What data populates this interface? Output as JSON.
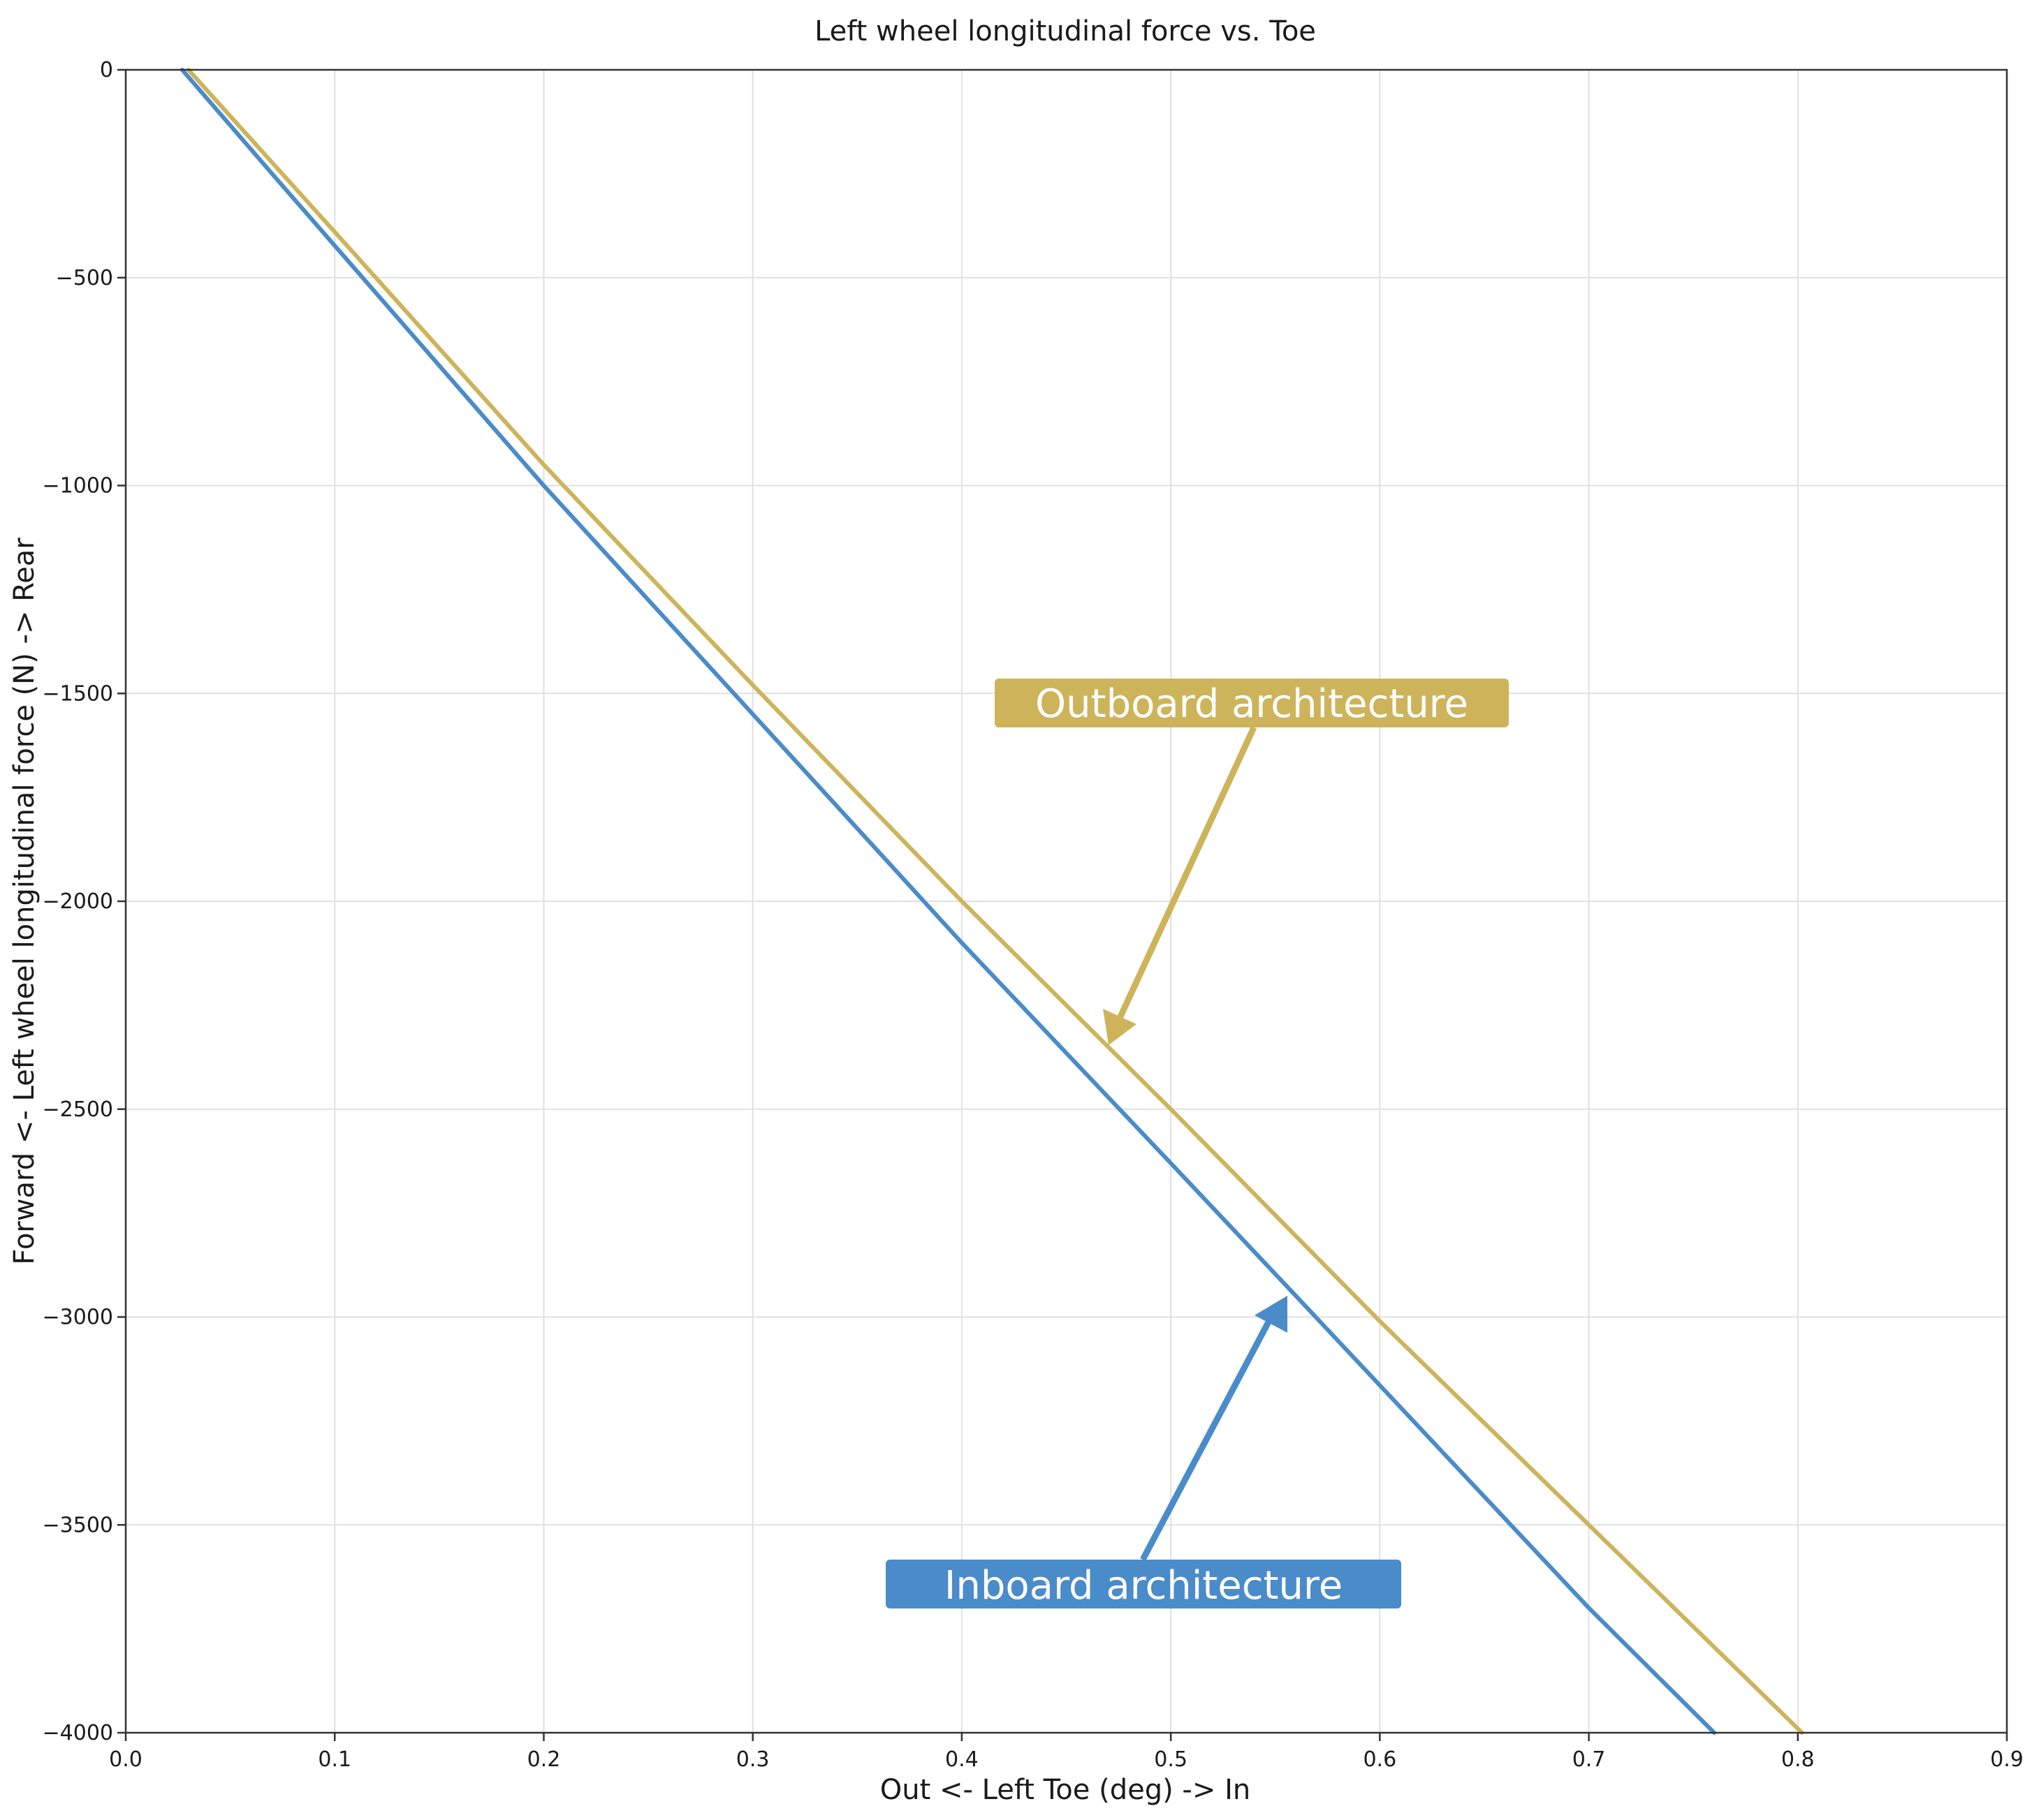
{
  "chart_data": {
    "type": "line",
    "title": "Left wheel longitudinal force vs. Toe",
    "xlabel": "Out <- Left Toe (deg) -> In",
    "ylabel": "Forward <- Left wheel longitudinal force (N) -> Rear",
    "xlim": [
      0,
      0.9
    ],
    "ylim": [
      -4000,
      0
    ],
    "x_ticks": [
      0,
      0.1,
      0.2,
      0.3,
      0.4,
      0.5,
      0.6,
      0.7,
      0.8,
      0.9
    ],
    "x_tick_labels": [
      "0.0",
      "0.1",
      "0.2",
      "0.3",
      "0.4",
      "0.5",
      "0.6",
      "0.7",
      "0.8",
      "0.9"
    ],
    "y_ticks": [
      0,
      -500,
      -1000,
      -1500,
      -2000,
      -2500,
      -3000,
      -3500,
      -4000
    ],
    "y_tick_labels": [
      "0",
      "−500",
      "−1000",
      "−1500",
      "−2000",
      "−2500",
      "−3000",
      "−3500",
      "−4000"
    ],
    "grid": true,
    "series": [
      {
        "color": "#4a8bc9",
        "x": [
          0.027,
          0.07,
          0.2,
          0.3,
          0.4,
          0.5,
          0.56,
          0.7,
          0.76
        ],
        "y": [
          0,
          -250,
          -1000,
          -1550,
          -2100,
          -2630,
          -2950,
          -3700,
          -4000
        ]
      },
      {
        "color": "#cdb45a",
        "x": [
          0.03,
          0.1,
          0.2,
          0.3,
          0.4,
          0.5,
          0.6,
          0.7,
          0.802
        ],
        "y": [
          0,
          -390,
          -950,
          -1480,
          -2000,
          -2500,
          -3010,
          -3500,
          -4000
        ]
      }
    ],
    "annotations": [
      {
        "text": "Outboard architecture",
        "color": "#cdb45a",
        "arrow_to": [
          0.47,
          -2350
        ]
      },
      {
        "text": "Inboard architecture",
        "color": "#4a8bc9",
        "arrow_to": [
          0.555,
          -2930
        ]
      }
    ]
  }
}
